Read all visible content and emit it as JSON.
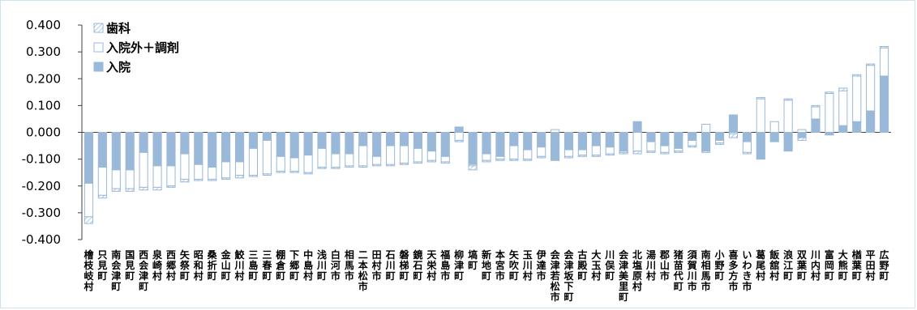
{
  "chart_data": {
    "type": "bar",
    "stacked": true,
    "ylim": [
      -0.4,
      0.4
    ],
    "yticks": [
      -0.4,
      -0.3,
      -0.2,
      -0.1,
      0.0,
      0.1,
      0.2,
      0.3,
      0.4
    ],
    "ytick_labels": [
      "-0.400",
      "-0.300",
      "-0.200",
      "-0.100",
      "0.000",
      "0.100",
      "0.200",
      "0.300",
      "0.400"
    ],
    "legend_position": "top-left",
    "grid": false,
    "colors": {
      "inpatient": "#9ab9d9",
      "outpatient": "#ffffff",
      "dental": "#ffffff",
      "outline": "#9ab9d9",
      "axis": "#404040"
    },
    "categories": [
      "檜枝岐村",
      "只見町",
      "南会津町",
      "国見町",
      "西会津町",
      "泉崎村",
      "西郷村",
      "矢祭町",
      "昭和村",
      "桑折町",
      "金山町",
      "鮫川村",
      "三島町",
      "三春町",
      "棚倉町",
      "下郷町",
      "中島村",
      "浅川町",
      "白河市",
      "相馬市",
      "二本松市",
      "田村市",
      "石川町",
      "磐梯町",
      "鏡石町",
      "天栄村",
      "福島市",
      "柳津町",
      "塙町",
      "新地町",
      "本宮市",
      "矢吹町",
      "玉川村",
      "伊達市",
      "会津若松市",
      "会津坂下町",
      "古殿町",
      "大玉村",
      "川俣町",
      "会津美里町",
      "北塩原村",
      "湯川村",
      "郡山市",
      "猪苗代町",
      "須賀川市",
      "南相馬市",
      "小野町",
      "喜多方市",
      "いわき市",
      "葛尾村",
      "飯舘村",
      "浪江町",
      "双葉町",
      "川内村",
      "富岡町",
      "大熊町",
      "楢葉町",
      "平田村",
      "広野町"
    ],
    "series": [
      {
        "name": "入院",
        "values": [
          -0.19,
          -0.13,
          -0.14,
          -0.14,
          -0.075,
          -0.125,
          -0.125,
          -0.08,
          -0.12,
          -0.13,
          -0.11,
          -0.11,
          -0.06,
          -0.03,
          -0.09,
          -0.095,
          -0.085,
          -0.06,
          -0.08,
          -0.08,
          -0.05,
          -0.09,
          -0.05,
          -0.05,
          -0.06,
          -0.07,
          -0.09,
          0.02,
          -0.12,
          -0.08,
          -0.09,
          -0.05,
          -0.065,
          -0.055,
          -0.105,
          -0.065,
          -0.065,
          -0.05,
          -0.055,
          -0.07,
          0.04,
          -0.035,
          -0.05,
          -0.06,
          -0.03,
          -0.07,
          -0.03,
          0.065,
          -0.035,
          -0.1,
          -0.035,
          -0.07,
          -0.02,
          0.05,
          -0.01,
          0.025,
          0.04,
          0.08,
          0.21
        ]
      },
      {
        "name": "入院外＋調剤",
        "values": [
          -0.125,
          -0.105,
          -0.07,
          -0.07,
          -0.13,
          -0.08,
          -0.075,
          -0.095,
          -0.055,
          -0.045,
          -0.06,
          -0.05,
          -0.1,
          -0.125,
          -0.055,
          -0.05,
          -0.065,
          -0.07,
          -0.05,
          -0.045,
          -0.075,
          -0.03,
          -0.07,
          -0.065,
          -0.05,
          -0.035,
          -0.02,
          -0.03,
          -0.005,
          -0.025,
          -0.01,
          -0.05,
          -0.035,
          -0.035,
          0.01,
          -0.025,
          -0.02,
          -0.035,
          -0.025,
          -0.005,
          -0.07,
          -0.035,
          -0.025,
          -0.01,
          -0.02,
          0.03,
          -0.01,
          -0.005,
          -0.04,
          0.125,
          0.04,
          0.12,
          0.01,
          0.045,
          0.145,
          0.13,
          0.17,
          0.17,
          0.105
        ]
      },
      {
        "name": "歯科",
        "values": [
          -0.025,
          -0.01,
          -0.01,
          -0.01,
          -0.01,
          -0.01,
          -0.005,
          -0.01,
          -0.005,
          -0.005,
          -0.005,
          -0.01,
          -0.005,
          -0.005,
          -0.005,
          -0.005,
          -0.005,
          -0.005,
          -0.005,
          -0.005,
          -0.005,
          -0.005,
          -0.005,
          -0.005,
          -0.005,
          -0.005,
          -0.005,
          -0.005,
          -0.015,
          -0.005,
          -0.005,
          -0.005,
          -0.005,
          -0.005,
          0.0,
          -0.005,
          -0.005,
          -0.005,
          -0.005,
          -0.005,
          -0.01,
          -0.005,
          -0.005,
          -0.005,
          -0.005,
          -0.005,
          -0.005,
          -0.015,
          -0.005,
          0.005,
          0.0,
          0.005,
          -0.01,
          0.005,
          0.005,
          0.01,
          0.005,
          0.005,
          0.005
        ]
      }
    ]
  }
}
